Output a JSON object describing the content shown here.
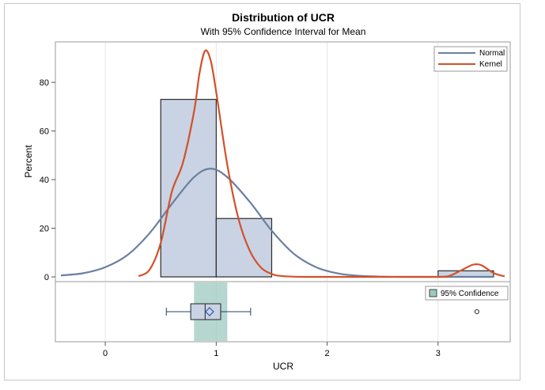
{
  "chart_data": {
    "type": "histogram",
    "title": "Distribution of UCR",
    "subtitle": "With 95% Confidence Interval for Mean",
    "xlabel": "UCR",
    "ylabel": "Percent",
    "xlim": [
      -0.45,
      3.65
    ],
    "ylim": [
      0,
      95
    ],
    "x_ticks": [
      0,
      1,
      2,
      3
    ],
    "y_ticks": [
      0,
      20,
      40,
      60,
      80
    ],
    "bins": [
      {
        "x0": 0.5,
        "x1": 1.0,
        "value": 73
      },
      {
        "x0": 1.0,
        "x1": 1.5,
        "value": 24
      },
      {
        "x0": 1.5,
        "x1": 2.0,
        "value": 0
      },
      {
        "x0": 2.0,
        "x1": 2.5,
        "value": 0
      },
      {
        "x0": 2.5,
        "x1": 3.0,
        "value": 0
      },
      {
        "x0": 3.0,
        "x1": 3.5,
        "value": 2.5
      }
    ],
    "series": [
      {
        "name": "Normal",
        "color": "#6a7fa0",
        "x": [
          -0.4,
          -0.2,
          0,
          0.2,
          0.4,
          0.6,
          0.8,
          0.95,
          1.1,
          1.3,
          1.5,
          1.7,
          1.9,
          2.1,
          2.3,
          2.5,
          2.7,
          2.9,
          3.1,
          3.3,
          3.5
        ],
        "y": [
          0.6,
          1.5,
          4,
          9,
          18,
          30,
          41,
          44.5,
          41,
          31,
          19,
          9.5,
          4,
          1.4,
          0.4,
          0.1,
          0,
          0,
          0,
          0,
          0
        ]
      },
      {
        "name": "Kernel",
        "color": "#d2512a",
        "x": [
          0.3,
          0.4,
          0.5,
          0.6,
          0.7,
          0.8,
          0.85,
          0.9,
          0.95,
          1.0,
          1.1,
          1.2,
          1.3,
          1.4,
          1.5,
          1.6,
          1.8,
          2.0,
          2.5,
          3.0,
          3.1,
          3.2,
          3.3,
          3.35,
          3.4,
          3.5,
          3.6
        ],
        "y": [
          0.3,
          3,
          14,
          35,
          47,
          68,
          84,
          93,
          89,
          76,
          46,
          24,
          11,
          4,
          1.2,
          0.3,
          0,
          0,
          0,
          0,
          0.4,
          2.5,
          4.8,
          5.2,
          4.6,
          1.6,
          0.2
        ]
      }
    ],
    "boxplot": {
      "whisker_low": 0.55,
      "q1": 0.77,
      "median": 0.9,
      "mean": 0.94,
      "q3": 1.04,
      "whisker_high": 1.31,
      "outliers": [
        3.35
      ],
      "ci_mean": [
        0.8,
        1.1
      ]
    },
    "legend_main": [
      "Normal",
      "Kernel"
    ],
    "legend_box": "95% Confidence",
    "colors": {
      "bar_fill": "#c9d3e3",
      "bar_stroke": "#2b2b2b",
      "normal": "#6a7fa0",
      "kernel": "#d2512a",
      "ci_band": "#9cc9c0",
      "box": "#c9d3e3",
      "mean_marker": "#3355aa",
      "grid": "#e6e6e6"
    }
  }
}
